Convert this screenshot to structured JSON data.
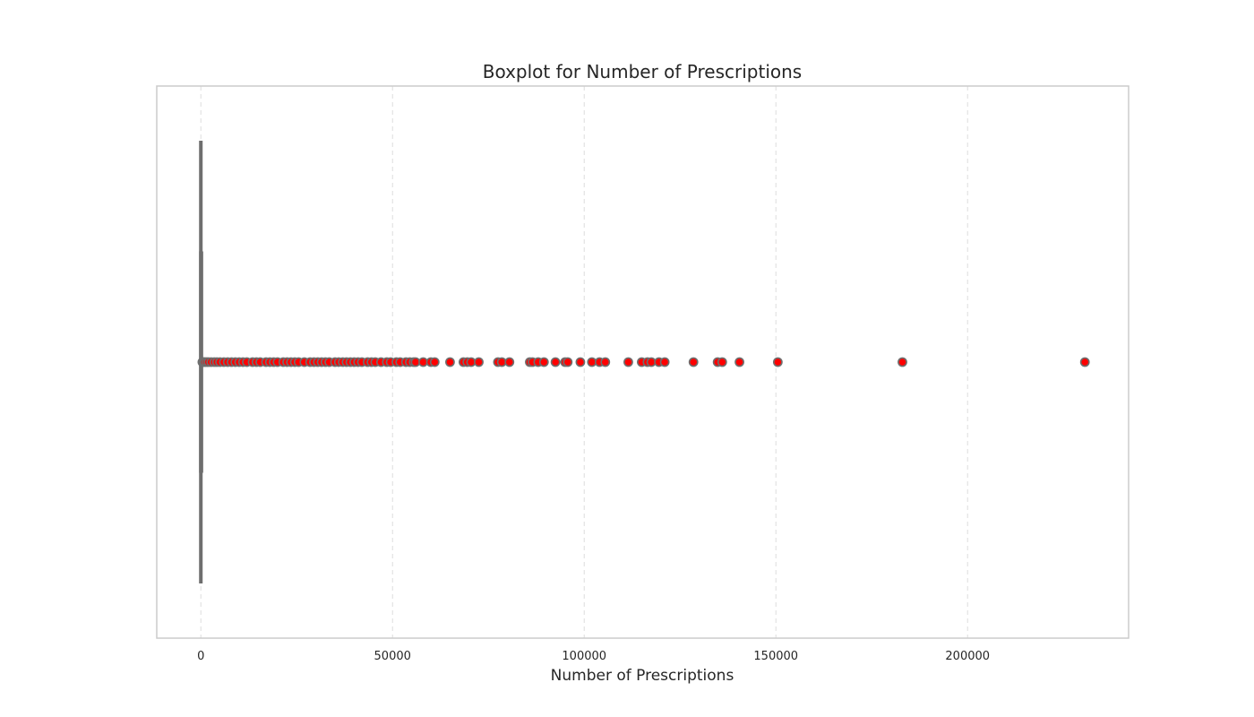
{
  "chart_data": {
    "type": "boxplot",
    "orientation": "horizontal",
    "title": "Boxplot for Number of Prescriptions",
    "xlabel": "Number of Prescriptions",
    "ylabel": "",
    "xlim": [
      -11500,
      242000
    ],
    "xticks": [
      0,
      50000,
      100000,
      150000,
      200000
    ],
    "xtick_labels": [
      "0",
      "50000",
      "100000",
      "150000",
      "200000"
    ],
    "grid": "x-dashed",
    "box": {
      "min": 0,
      "q1": 10,
      "median": 40,
      "q3": 150,
      "whisker_high": 370
    },
    "outliers": [
      400,
      700,
      1000,
      1500,
      2000,
      2700,
      3500,
      4200,
      5000,
      6000,
      7000,
      8000,
      9000,
      10000,
      11000,
      12000,
      13500,
      14500,
      15500,
      17000,
      18000,
      19000,
      20000,
      21500,
      22500,
      23500,
      24500,
      25500,
      27000,
      28500,
      29500,
      30500,
      31500,
      32500,
      33500,
      35000,
      36000,
      37000,
      38000,
      39000,
      40000,
      41000,
      42000,
      43500,
      44500,
      45500,
      47000,
      48500,
      49500,
      51000,
      52000,
      53500,
      54500,
      55500,
      56000,
      58000,
      60000,
      61000,
      65000,
      68500,
      69500,
      70500,
      72500,
      77500,
      78500,
      80500,
      85800,
      86500,
      88000,
      89500,
      92500,
      95000,
      95700,
      99000,
      102000,
      104000,
      105500,
      111500,
      115000,
      116500,
      117500,
      119500,
      121000,
      128500,
      134800,
      136000,
      140500,
      150500,
      183000,
      230600
    ],
    "box_color": "#6e6e6e",
    "outlier_fill": "#ff0000",
    "outlier_edge": "#6e6e6e",
    "grid_color": "#dddddd",
    "frame_color": "#cccccc"
  }
}
